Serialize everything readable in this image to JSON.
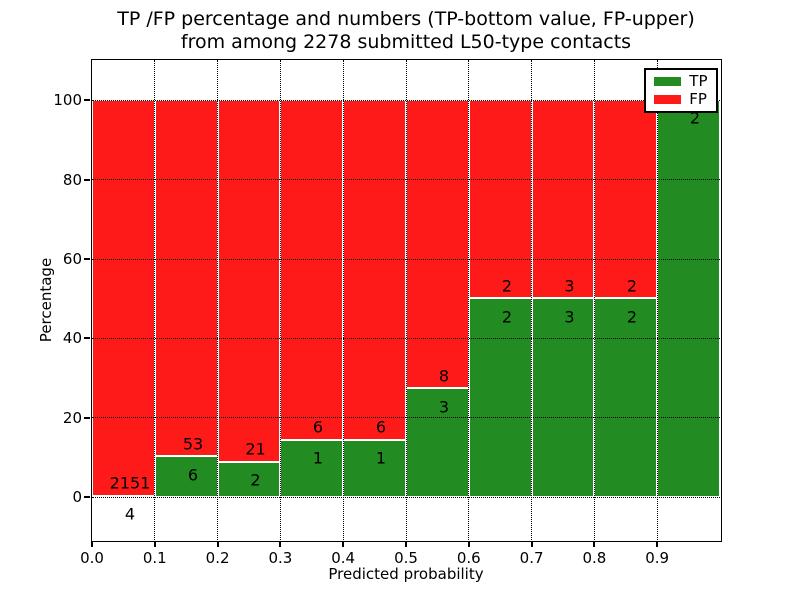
{
  "title": {
    "line1": "TP /FP percentage and numbers (TP-bottom value, FP-upper)",
    "line2": "from among 2278 submitted L50-type contacts"
  },
  "chart_data": {
    "type": "bar",
    "stacked": true,
    "title": "TP /FP percentage and numbers (TP-bottom value, FP-upper)\nfrom among 2278 submitted L50-type contacts",
    "xlabel": "Predicted probability",
    "ylabel": "Percentage",
    "total_submitted": 2278,
    "bin_width": 0.1,
    "categories": [
      "0.0-0.1",
      "0.1-0.2",
      "0.2-0.3",
      "0.3-0.4",
      "0.4-0.5",
      "0.5-0.6",
      "0.6-0.7",
      "0.7-0.8",
      "0.8-0.9",
      "0.9-1.0"
    ],
    "series": [
      {
        "name": "TP",
        "color": "#228b22",
        "counts": [
          4,
          6,
          2,
          1,
          1,
          3,
          2,
          3,
          2,
          2
        ],
        "percentages": [
          0.19,
          10.17,
          8.7,
          14.29,
          14.29,
          27.27,
          50,
          50,
          50,
          100
        ]
      },
      {
        "name": "FP",
        "color": "#ff1a1a",
        "counts": [
          2151,
          53,
          21,
          6,
          6,
          8,
          2,
          3,
          2,
          0
        ],
        "percentages": [
          99.81,
          89.83,
          91.3,
          85.71,
          85.71,
          72.73,
          50,
          50,
          50,
          0
        ]
      }
    ],
    "xlim": [
      0.0,
      1.0
    ],
    "ylim": [
      -10.8,
      110.2
    ],
    "xticks": [
      "0.0",
      "0.1",
      "0.2",
      "0.3",
      "0.4",
      "0.5",
      "0.6",
      "0.7",
      "0.8",
      "0.9"
    ],
    "xtick_values": [
      0,
      0.1,
      0.2,
      0.3,
      0.4,
      0.5,
      0.6,
      0.7,
      0.8,
      0.9
    ],
    "yticks": [
      0,
      20,
      40,
      60,
      80,
      100
    ],
    "grid": true,
    "legend": {
      "position": "upper right",
      "items": [
        {
          "label": "TP",
          "color": "#228b22"
        },
        {
          "label": "FP",
          "color": "#ff1a1a"
        }
      ]
    }
  }
}
